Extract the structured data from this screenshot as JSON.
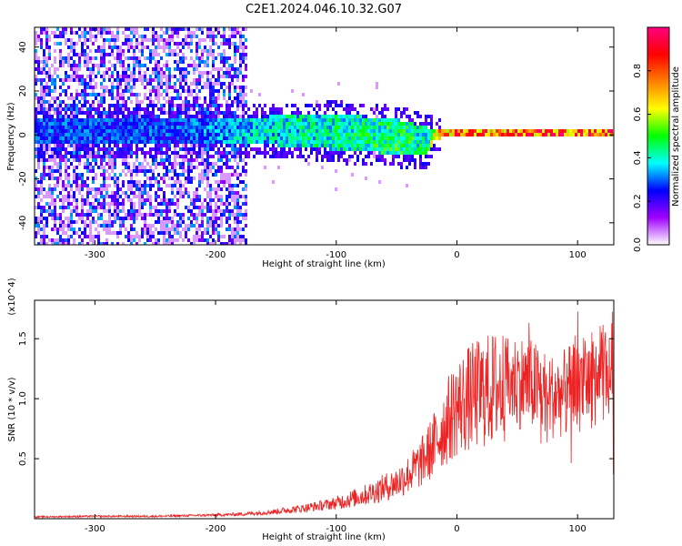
{
  "title": "C2E1.2024.046.10.32.G07",
  "chart_data": [
    {
      "type": "heatmap",
      "title": "C2E1.2024.046.10.32.G07",
      "xlabel": "Height of straight line (km)",
      "ylabel": "Frequency (Hz)",
      "xlim": [
        -350,
        130
      ],
      "ylim": [
        -50,
        49
      ],
      "xticks": [
        -300,
        -200,
        -100,
        0,
        100
      ],
      "yticks": [
        -40,
        -20,
        0,
        20,
        40
      ],
      "colorbar": {
        "label": "Normalized spectral amplitude",
        "range": [
          0,
          1
        ],
        "ticks": [
          0.0,
          0.2,
          0.4,
          0.6,
          0.8
        ],
        "colormap": [
          "#ffffff",
          "#a000ff",
          "#0000ff",
          "#00ffff",
          "#00ff00",
          "#ffff00",
          "#ff8000",
          "#ff0000",
          "#ff0080"
        ]
      },
      "features": {
        "noise_region": {
          "x": [
            -350,
            -175
          ],
          "y": [
            -50,
            49
          ],
          "amplitude": 0.25
        },
        "signal_band": [
          {
            "x": -230,
            "center": 3,
            "halfwidth": 6,
            "amplitude": 0.3
          },
          {
            "x": -175,
            "center": 3,
            "halfwidth": 6,
            "amplitude": 0.4
          },
          {
            "x": -100,
            "center": 2,
            "halfwidth": 8,
            "amplitude": 0.45
          },
          {
            "x": -50,
            "center": 0,
            "halfwidth": 8,
            "amplitude": 0.5
          },
          {
            "x": -25,
            "center": -2,
            "halfwidth": 6,
            "amplitude": 0.45
          },
          {
            "x": -20,
            "center": 1,
            "halfwidth": 2,
            "amplitude": 0.7
          },
          {
            "x": 0,
            "center": 2,
            "halfwidth": 2,
            "amplitude": 0.85
          },
          {
            "x": 130,
            "center": 2,
            "halfwidth": 2,
            "amplitude": 0.9
          }
        ]
      }
    },
    {
      "type": "line",
      "xlabel": "Height of straight line (km)",
      "ylabel": "SNR (10 * v/v)",
      "y_multiplier": "(x10^4)",
      "xlim": [
        -350,
        130
      ],
      "ylim": [
        0,
        1.82
      ],
      "xticks": [
        -300,
        -200,
        -100,
        0,
        100
      ],
      "yticks": [
        0.5,
        1.0,
        1.5
      ],
      "series": [
        {
          "color": "#ee2222",
          "x": [
            -350,
            -300,
            -250,
            -200,
            -175,
            -150,
            -125,
            -100,
            -75,
            -50,
            -40,
            -30,
            -20,
            -10,
            0,
            10,
            20,
            30,
            40,
            50,
            60,
            70,
            80,
            90,
            100,
            110,
            120,
            130
          ],
          "y": [
            0.015,
            0.02,
            0.02,
            0.03,
            0.04,
            0.06,
            0.09,
            0.13,
            0.2,
            0.3,
            0.37,
            0.46,
            0.6,
            0.78,
            0.93,
            1.0,
            1.05,
            1.08,
            1.12,
            1.15,
            1.12,
            1.07,
            1.02,
            1.05,
            1.1,
            1.15,
            1.2,
            1.25
          ]
        }
      ]
    }
  ]
}
